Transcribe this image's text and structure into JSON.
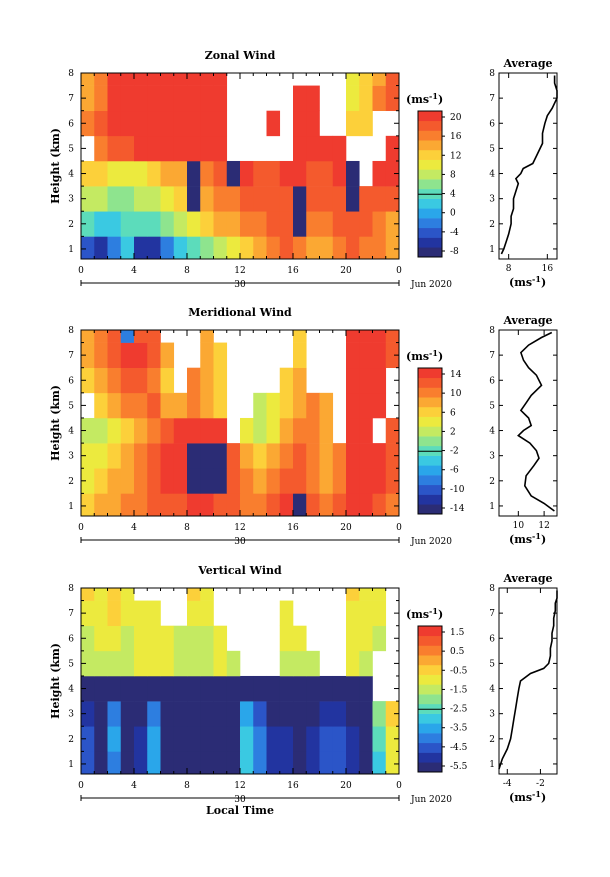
{
  "colormap": [
    "#2b2c75",
    "#2234a0",
    "#2b55c8",
    "#2d7ee0",
    "#2aa6ea",
    "#3ac9e2",
    "#5cdcbb",
    "#8ee48e",
    "#c4ea62",
    "#ecea3e",
    "#fcd03a",
    "#fba833",
    "#f97e2e",
    "#f45a2d",
    "#ef3b2f"
  ],
  "panels": [
    {
      "title": "Zonal Wind",
      "ylabel": "Height (km)",
      "yticks": [
        "1",
        "2",
        "3",
        "4",
        "5",
        "6",
        "7",
        "8"
      ],
      "xticks": [
        "0",
        "4",
        "8",
        "12",
        "16",
        "20",
        "0"
      ],
      "date_tick": "30",
      "date_label": "Jun 2020",
      "unit": "(ms",
      "unit_exp": "-1",
      "colorbar_ticks": [
        "20",
        "16",
        "12",
        "8",
        "4",
        "0",
        "-4",
        "-8"
      ],
      "avg_title": "Average",
      "avg_xticks": [
        "8",
        "16"
      ],
      "avg_xlabel": "(ms",
      "avg_xlabel_exp": "-1",
      "avg_yticks": [
        "1",
        "2",
        "3",
        "4",
        "5",
        "6",
        "7",
        "8"
      ]
    },
    {
      "title": "Meridional Wind",
      "ylabel": "Height (km)",
      "yticks": [
        "1",
        "2",
        "3",
        "4",
        "5",
        "6",
        "7",
        "8"
      ],
      "xticks": [
        "0",
        "4",
        "8",
        "12",
        "16",
        "20",
        "0"
      ],
      "date_tick": "30",
      "date_label": "Jun 2020",
      "unit": "(ms",
      "unit_exp": "-1",
      "colorbar_ticks": [
        "14",
        "10",
        "6",
        "2",
        "-2",
        "-6",
        "-10",
        "-14"
      ],
      "avg_title": "Average",
      "avg_xticks": [
        "10",
        "12"
      ],
      "avg_xlabel": "(ms",
      "avg_xlabel_exp": "-1",
      "avg_yticks": [
        "1",
        "2",
        "3",
        "4",
        "5",
        "6",
        "7",
        "8"
      ]
    },
    {
      "title": "Vertical Wind",
      "ylabel": "Height (km)",
      "yticks": [
        "1",
        "2",
        "3",
        "4",
        "5",
        "6",
        "7",
        "8"
      ],
      "xticks": [
        "0",
        "4",
        "8",
        "12",
        "16",
        "20",
        "0"
      ],
      "date_tick": "30",
      "date_label": "Jun 2020",
      "unit": "(ms",
      "unit_exp": "-1",
      "colorbar_ticks": [
        "1.5",
        "0.5",
        "-0.5",
        "-1.5",
        "-2.5",
        "-3.5",
        "-4.5",
        "-5.5"
      ],
      "avg_title": "Average",
      "avg_xticks": [
        "-4",
        "-2"
      ],
      "avg_xlabel": "(ms",
      "avg_xlabel_exp": "-1",
      "avg_yticks": [
        "1",
        "2",
        "3",
        "4",
        "5",
        "6",
        "7",
        "8"
      ],
      "xlabel": "Local Time"
    }
  ],
  "chart_data": [
    {
      "type": "heatmap",
      "title": "Zonal Wind",
      "ylabel": "Height (km)",
      "xlim_hours": [
        0,
        24
      ],
      "ylim": [
        0.6,
        8
      ],
      "colorbar_range": [
        -8,
        22
      ],
      "time_hours": [
        0,
        1,
        2,
        3,
        4,
        5,
        6,
        7,
        8,
        9,
        10,
        11,
        12,
        13,
        14,
        15,
        16,
        17,
        18,
        19,
        20,
        21,
        22,
        23
      ],
      "height_km": [
        1,
        2,
        3,
        4,
        5,
        6,
        7,
        8
      ],
      "values": [
        [
          -4,
          -5,
          -2,
          2,
          -6,
          -6,
          -2,
          2,
          4,
          6,
          8,
          10,
          12,
          14,
          16,
          18,
          16,
          14,
          14,
          16,
          18,
          16,
          16,
          14
        ],
        [
          4,
          2,
          2,
          4,
          4,
          4,
          6,
          8,
          10,
          12,
          14,
          14,
          16,
          16,
          18,
          18,
          -8,
          16,
          16,
          18,
          18,
          18,
          16,
          14
        ],
        [
          8,
          8,
          6,
          6,
          8,
          8,
          10,
          12,
          -8,
          14,
          16,
          16,
          18,
          18,
          18,
          18,
          -8,
          18,
          18,
          18,
          -8,
          18,
          18,
          18
        ],
        [
          12,
          12,
          10,
          10,
          10,
          12,
          14,
          14,
          -8,
          16,
          18,
          -8,
          20,
          18,
          18,
          20,
          20,
          18,
          18,
          20,
          -8,
          null,
          20,
          20
        ],
        [
          null,
          16,
          18,
          18,
          20,
          20,
          22,
          22,
          20,
          22,
          20,
          null,
          null,
          null,
          null,
          null,
          20,
          22,
          22,
          20,
          null,
          null,
          null,
          20
        ],
        [
          16,
          18,
          20,
          22,
          22,
          22,
          22,
          22,
          22,
          22,
          22,
          null,
          null,
          null,
          20,
          null,
          22,
          22,
          null,
          null,
          12,
          12,
          null,
          null
        ],
        [
          14,
          16,
          20,
          22,
          22,
          22,
          22,
          22,
          22,
          22,
          22,
          null,
          null,
          null,
          null,
          null,
          22,
          22,
          null,
          null,
          10,
          12,
          16,
          18
        ],
        [
          14,
          16,
          20,
          22,
          22,
          22,
          22,
          22,
          22,
          22,
          22,
          null,
          null,
          null,
          null,
          null,
          null,
          null,
          null,
          null,
          10,
          12,
          14,
          18
        ]
      ]
    },
    {
      "type": "line",
      "title": "Average",
      "xlabel": "(ms-1)",
      "ylabel": "Height (km)",
      "xlim": [
        6,
        18
      ],
      "ylim": [
        0.6,
        8
      ],
      "x": [
        6.5,
        7.0,
        7.5,
        8.0,
        8.5,
        8.5,
        9.0,
        9.0,
        9.5,
        10.0,
        9.5,
        10.5,
        11.0,
        13.0,
        14.0,
        15.0,
        15.0,
        15.5,
        16.0,
        17.0,
        18.0,
        18.0,
        17.5,
        17.5
      ],
      "y": [
        0.8,
        1.0,
        1.3,
        1.6,
        2.0,
        2.3,
        2.6,
        3.0,
        3.3,
        3.6,
        3.8,
        4.0,
        4.2,
        4.4,
        4.8,
        5.2,
        5.6,
        6.0,
        6.3,
        6.6,
        7.0,
        7.3,
        7.6,
        7.9
      ]
    },
    {
      "type": "heatmap",
      "title": "Meridional Wind",
      "ylabel": "Height (km)",
      "xlim_hours": [
        0,
        24
      ],
      "ylim": [
        0.6,
        8
      ],
      "colorbar_range": [
        -16,
        16
      ],
      "time_hours": [
        0,
        1,
        2,
        3,
        4,
        5,
        6,
        7,
        8,
        9,
        10,
        11,
        12,
        13,
        14,
        15,
        16,
        17,
        18,
        19,
        20,
        21,
        22,
        23
      ],
      "height_km": [
        1,
        2,
        3,
        4,
        5,
        6,
        7,
        8
      ],
      "values": [
        [
          6,
          8,
          8,
          10,
          10,
          12,
          12,
          12,
          14,
          14,
          12,
          12,
          10,
          10,
          12,
          14,
          -14,
          12,
          10,
          12,
          14,
          14,
          12,
          10
        ],
        [
          4,
          6,
          8,
          8,
          10,
          12,
          14,
          14,
          -14,
          -14,
          -14,
          12,
          10,
          8,
          10,
          12,
          12,
          10,
          8,
          10,
          14,
          16,
          14,
          12
        ],
        [
          4,
          4,
          6,
          8,
          10,
          12,
          14,
          14,
          -14,
          -14,
          -14,
          12,
          8,
          6,
          8,
          10,
          12,
          10,
          8,
          10,
          14,
          16,
          14,
          12
        ],
        [
          2,
          2,
          4,
          6,
          8,
          10,
          12,
          14,
          16,
          14,
          14,
          null,
          4,
          2,
          4,
          8,
          10,
          10,
          8,
          null,
          14,
          16,
          null,
          12
        ],
        [
          null,
          6,
          8,
          10,
          10,
          12,
          8,
          8,
          10,
          8,
          6,
          null,
          null,
          2,
          4,
          6,
          8,
          10,
          8,
          null,
          14,
          16,
          14,
          null
        ],
        [
          6,
          8,
          10,
          12,
          12,
          10,
          6,
          null,
          10,
          8,
          6,
          null,
          null,
          null,
          null,
          6,
          8,
          null,
          null,
          null,
          14,
          16,
          14,
          null
        ],
        [
          8,
          10,
          12,
          14,
          14,
          12,
          8,
          null,
          null,
          8,
          6,
          null,
          null,
          null,
          null,
          null,
          6,
          null,
          null,
          null,
          14,
          16,
          14,
          12
        ],
        [
          8,
          10,
          12,
          -8,
          12,
          12,
          null,
          null,
          null,
          8,
          null,
          null,
          null,
          null,
          null,
          null,
          6,
          null,
          null,
          null,
          14,
          16,
          14,
          12
        ]
      ]
    },
    {
      "type": "line",
      "title": "Average",
      "xlabel": "(ms-1)",
      "ylabel": "Height (km)",
      "xlim": [
        8.5,
        13
      ],
      "ylim": [
        0.6,
        8
      ],
      "x": [
        12.8,
        12.0,
        11.0,
        10.5,
        10.6,
        11.2,
        11.6,
        11.4,
        10.9,
        10.0,
        10.4,
        11.0,
        10.8,
        10.2,
        10.6,
        11.0,
        11.8,
        11.4,
        10.8,
        10.4,
        10.2,
        10.8,
        11.8,
        12.6
      ],
      "y": [
        0.8,
        1.1,
        1.4,
        1.8,
        2.2,
        2.6,
        2.9,
        3.2,
        3.5,
        3.8,
        4.0,
        4.2,
        4.5,
        4.8,
        5.1,
        5.4,
        5.8,
        6.2,
        6.5,
        6.8,
        7.1,
        7.4,
        7.7,
        7.9
      ]
    },
    {
      "type": "heatmap",
      "title": "Vertical Wind",
      "xlabel": "Local Time",
      "ylabel": "Height (km)",
      "xlim_hours": [
        0,
        24
      ],
      "ylim": [
        0.6,
        8
      ],
      "colorbar_range": [
        -5.5,
        2
      ],
      "time_hours": [
        0,
        1,
        2,
        3,
        4,
        5,
        6,
        7,
        8,
        9,
        10,
        11,
        12,
        13,
        14,
        15,
        16,
        17,
        18,
        19,
        20,
        21,
        22,
        23
      ],
      "height_km": [
        1,
        2,
        3,
        4,
        5,
        6,
        7,
        8
      ],
      "values": [
        [
          -4.5,
          -5.5,
          -4,
          -5.5,
          -5,
          -3.5,
          -5.5,
          -5.5,
          -5.5,
          -5.5,
          -5.5,
          -5.5,
          -3,
          -4,
          -5,
          -5,
          -5.5,
          -5,
          -4.5,
          -4.5,
          -5,
          -5.5,
          -3,
          -1
        ],
        [
          -4.5,
          -5.5,
          -3.5,
          -5.5,
          -5,
          -3.5,
          -5.5,
          -5.5,
          -5.5,
          -5.5,
          -5.5,
          -5.5,
          -3,
          -4,
          -5,
          -5,
          -5.5,
          -5,
          -4.5,
          -4.5,
          -5,
          -5.5,
          -2.5,
          -1
        ],
        [
          -5,
          -5.5,
          -4,
          -5.5,
          -5.5,
          -4,
          -5.5,
          -5.5,
          -5.5,
          -5.5,
          -5.5,
          -5.5,
          -3.5,
          -4.5,
          -5.5,
          -5.5,
          -5.5,
          -5.5,
          -5,
          -5,
          -5.5,
          -5.5,
          -2,
          -0.5
        ],
        [
          -5.5,
          -5.5,
          -5.5,
          -5.5,
          -5.5,
          -5.5,
          -5.5,
          -5.5,
          -5.5,
          -5.5,
          -5.5,
          -5.5,
          -5.5,
          -5.5,
          -5.5,
          -5.5,
          -5.5,
          -5.5,
          -5.5,
          -5.5,
          -5.5,
          -5.5,
          null,
          null
        ],
        [
          -1.5,
          -1.5,
          -1.5,
          -1.5,
          -1,
          -1,
          -1,
          -1.5,
          -1.5,
          -1.5,
          -1,
          -1.5,
          null,
          null,
          null,
          -1.5,
          -1.5,
          -1.5,
          null,
          null,
          -1,
          -1.5,
          null,
          null
        ],
        [
          -1.5,
          -1,
          -1,
          -1.5,
          -1,
          -1,
          -1,
          -1.5,
          -1.5,
          -1.5,
          -1,
          null,
          null,
          null,
          null,
          -1,
          -1,
          null,
          null,
          null,
          -1,
          -1,
          -1.5,
          null
        ],
        [
          -1,
          -1,
          -0.5,
          -1,
          -1,
          -1,
          null,
          null,
          -1,
          -1,
          null,
          null,
          null,
          null,
          null,
          -1,
          null,
          null,
          null,
          null,
          -1,
          -1,
          -1,
          null
        ],
        [
          -0.5,
          -1,
          -0.5,
          -1,
          null,
          null,
          null,
          null,
          -0.5,
          -1,
          null,
          null,
          null,
          null,
          null,
          null,
          null,
          null,
          null,
          null,
          -0.5,
          -1,
          -1,
          null
        ]
      ]
    },
    {
      "type": "line",
      "title": "Average",
      "xlabel": "(ms-1)",
      "ylabel": "Height (km)",
      "xlim": [
        -4.5,
        -1
      ],
      "ylim": [
        0.6,
        8
      ],
      "x": [
        -4.6,
        -4.3,
        -4.0,
        -3.8,
        -3.7,
        -3.6,
        -3.5,
        -3.4,
        -3.3,
        -3.2,
        -2.6,
        -1.8,
        -1.5,
        -1.4,
        -1.4,
        -1.3,
        -1.3,
        -1.2,
        -1.2,
        -1.1,
        -1.1,
        -1.0,
        -1.0,
        -1.0
      ],
      "y": [
        0.8,
        1.2,
        1.6,
        2.0,
        2.4,
        2.8,
        3.2,
        3.6,
        4.0,
        4.3,
        4.6,
        4.8,
        5.0,
        5.3,
        5.6,
        5.9,
        6.2,
        6.5,
        6.8,
        7.1,
        7.4,
        7.6,
        7.8,
        7.9
      ]
    }
  ]
}
